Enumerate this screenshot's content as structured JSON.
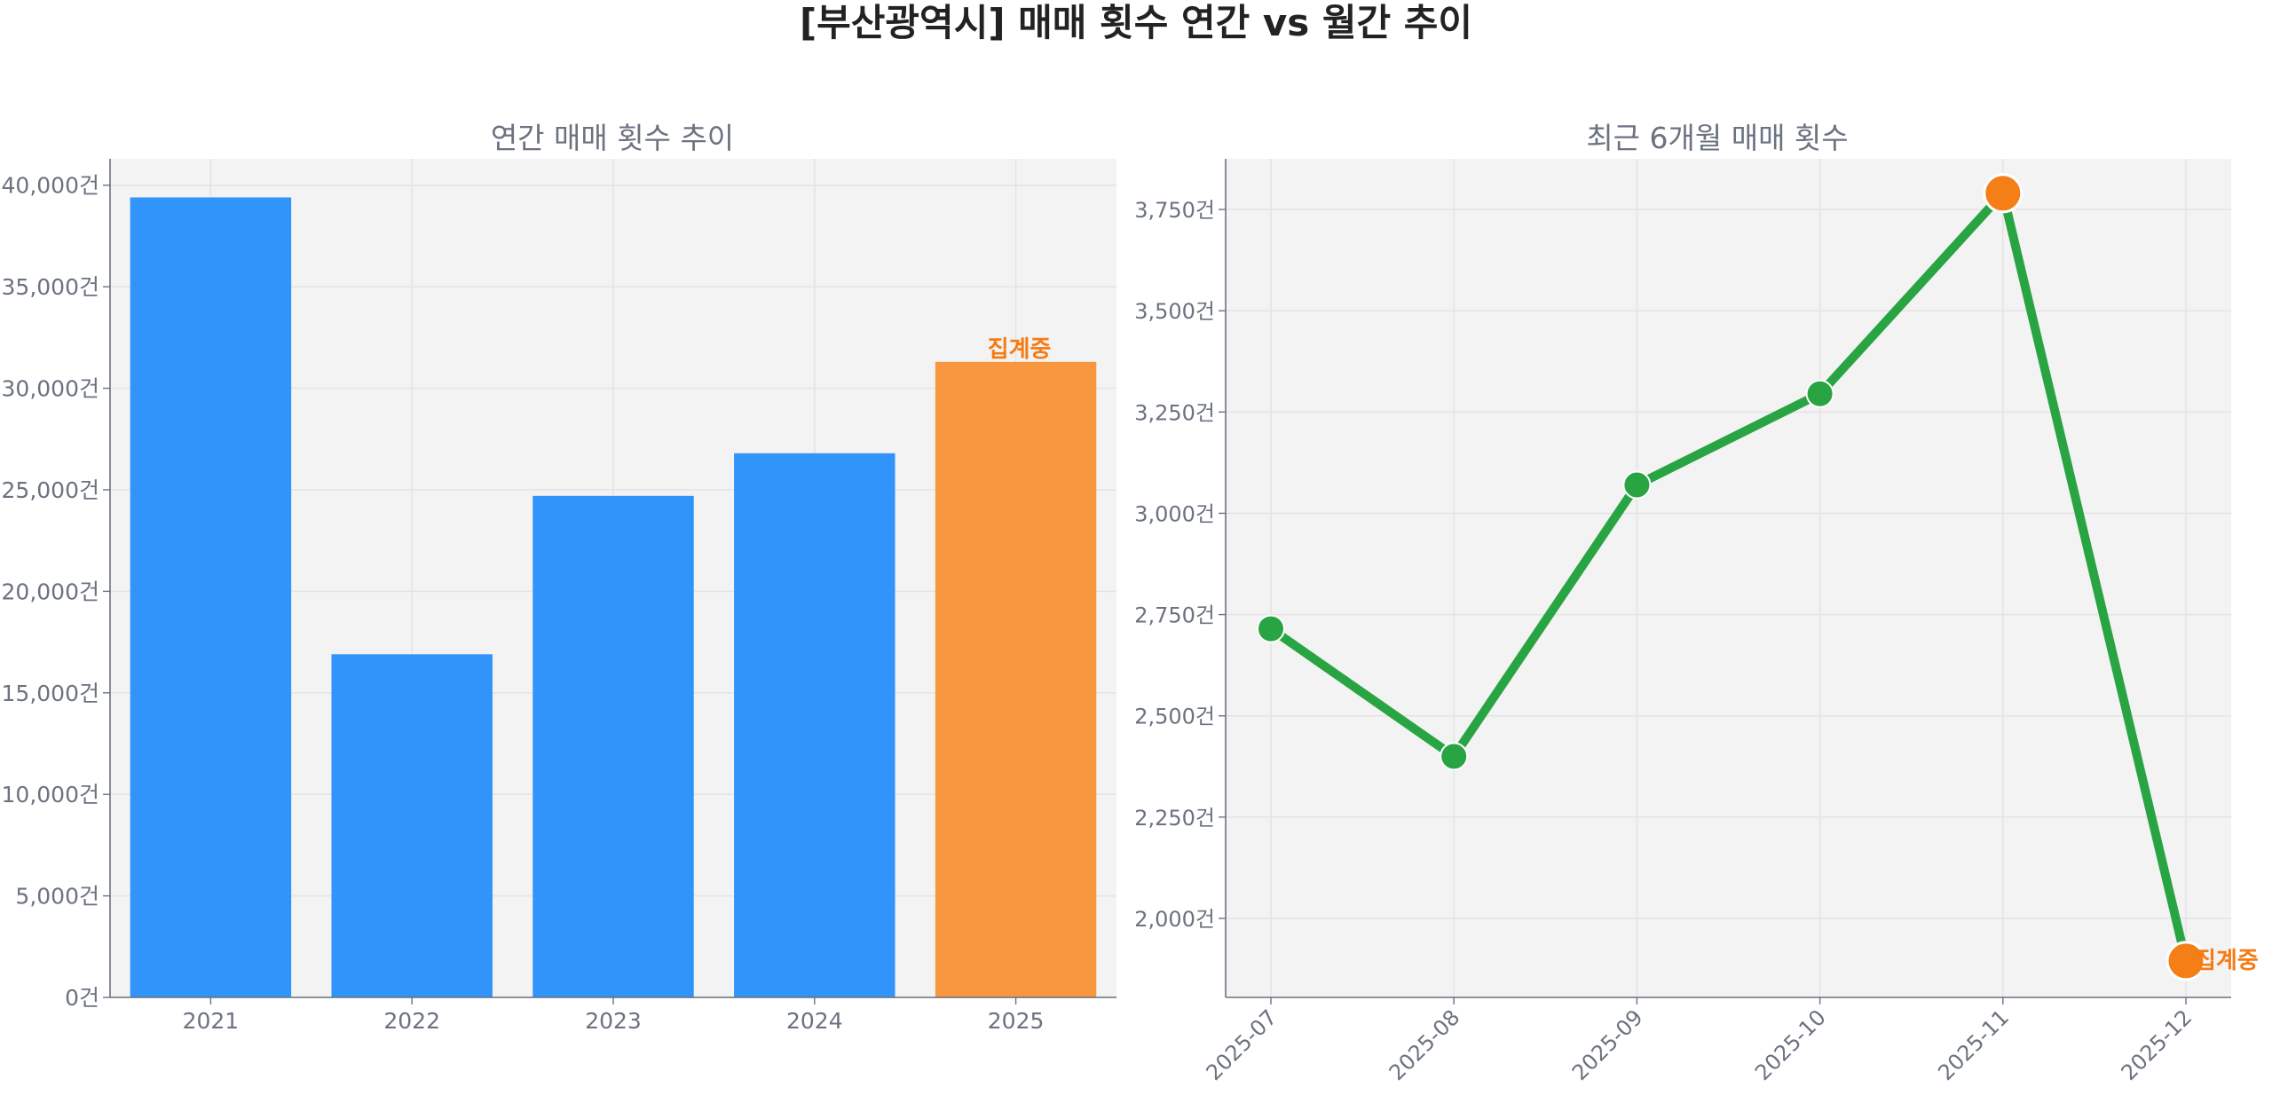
{
  "figure": {
    "title": "[부산광역시] 매매 횟수 연간 vs 월간 추이"
  },
  "colors": {
    "bar": "#3194fa",
    "bar_highlight": "#f99740",
    "line": "#29a443",
    "marker_highlight": "#f57f17",
    "annotation": "#f57c14",
    "plot_bg": "#f3f3f3"
  },
  "chart_data": [
    {
      "type": "bar",
      "title": "연간 매매 횟수 추이",
      "categories": [
        "2021",
        "2022",
        "2023",
        "2024",
        "2025"
      ],
      "values": [
        39400,
        16900,
        24700,
        26800,
        31300
      ],
      "ylim": [
        0,
        41300
      ],
      "yticks": [
        0,
        5000,
        10000,
        15000,
        20000,
        25000,
        30000,
        35000,
        40000
      ],
      "ytick_labels": [
        "0건",
        "5,000건",
        "10,000건",
        "15,000건",
        "20,000건",
        "25,000건",
        "30,000건",
        "35,000건",
        "40,000건"
      ],
      "highlight_index": 4,
      "annotation": "집계중",
      "grid": true
    },
    {
      "type": "line",
      "title": "최근 6개월 매매 횟수",
      "x": [
        "2025-07",
        "2025-08",
        "2025-09",
        "2025-10",
        "2025-11",
        "2025-12"
      ],
      "values": [
        2715,
        2400,
        3070,
        3295,
        3790,
        1895
      ],
      "ylim": [
        1805,
        3875
      ],
      "yticks": [
        2000,
        2250,
        2500,
        2750,
        3000,
        3250,
        3500,
        3750
      ],
      "ytick_labels": [
        "2,000건",
        "2,250건",
        "2,500건",
        "2,750건",
        "3,000건",
        "3,250건",
        "3,500건",
        "3,750건"
      ],
      "highlight_indices": [
        4,
        5
      ],
      "annotation": "집계중",
      "annotation_index": 5,
      "grid": true
    }
  ]
}
